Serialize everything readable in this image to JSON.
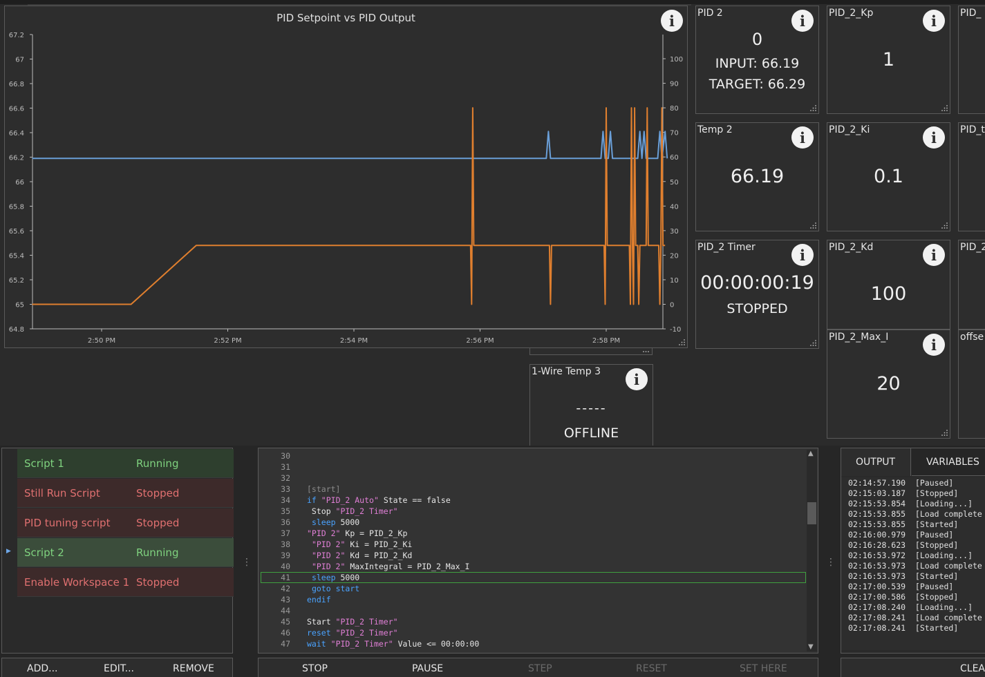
{
  "chart": {
    "title": "PID Setpoint vs PID Output",
    "left_axis_ticks": [
      "67.2",
      "67",
      "66.8",
      "66.6",
      "66.4",
      "66.2",
      "66",
      "65.8",
      "65.6",
      "65.4",
      "65.2",
      "65",
      "64.8"
    ],
    "right_axis_ticks": [
      "100",
      "90",
      "80",
      "70",
      "60",
      "50",
      "40",
      "30",
      "20",
      "10",
      "0",
      "-10"
    ],
    "x_ticks": [
      "2:50 PM",
      "2:52 PM",
      "2:54 PM",
      "2:56 PM",
      "2:58 PM"
    ]
  },
  "chart_data": {
    "type": "line",
    "title": "PID Setpoint vs PID Output",
    "x_ticks": [
      "2:50 PM",
      "2:52 PM",
      "2:54 PM",
      "2:56 PM",
      "2:58 PM"
    ],
    "ylim_left": [
      64.8,
      67.2
    ],
    "ylim_right": [
      -10,
      100
    ],
    "grid": false,
    "series": [
      {
        "axis": "left",
        "color": "#6a9fd8",
        "x": [
          "2:48:54 PM",
          "2:57:03 PM",
          "2:57:05 PM",
          "2:57:07 PM",
          "2:57:55 PM",
          "2:57:57 PM",
          "2:57:59 PM",
          "2:58:02 PM",
          "2:58:04 PM",
          "2:58:06 PM",
          "2:58:30 PM",
          "2:58:32 PM",
          "2:58:34 PM",
          "2:58:36 PM",
          "2:58:38 PM",
          "2:58:40 PM",
          "2:58:49 PM",
          "2:58:51 PM",
          "2:58:53 PM",
          "2:58:56 PM",
          "2:58:58 PM"
        ],
        "values": [
          66.19,
          66.19,
          66.41,
          66.19,
          66.19,
          66.41,
          66.19,
          66.19,
          66.41,
          66.19,
          66.19,
          66.41,
          66.19,
          66.41,
          66.19,
          66.19,
          66.19,
          66.41,
          66.19,
          66.41,
          66.19
        ]
      },
      {
        "axis": "right",
        "color": "#e07f2e",
        "x": [
          "2:48:54 PM",
          "2:50:28 PM",
          "2:51:30 PM",
          "2:55:51 PM",
          "2:55:52 PM",
          "2:55:53 PM",
          "2:55:54 PM",
          "2:57:06 PM",
          "2:57:07 PM",
          "2:57:08 PM",
          "2:57:58 PM",
          "2:57:59 PM",
          "2:58:00 PM",
          "2:58:01 PM",
          "2:58:22 PM",
          "2:58:23 PM",
          "2:58:24 PM",
          "2:58:25 PM",
          "2:58:26 PM",
          "2:58:27 PM",
          "2:58:28 PM",
          "2:58:30 PM",
          "2:58:31 PM",
          "2:58:32 PM",
          "2:58:33 PM",
          "2:58:38 PM",
          "2:58:39 PM",
          "2:58:40 PM",
          "2:58:41 PM",
          "2:58:50 PM",
          "2:58:51 PM",
          "2:58:52 PM",
          "2:58:53 PM",
          "2:58:54 PM",
          "2:58:56 PM"
        ],
        "values": [
          0,
          0,
          24,
          24,
          0,
          80,
          24,
          24,
          0,
          24,
          24,
          0,
          80,
          24,
          24,
          0,
          80,
          24,
          0,
          80,
          24,
          24,
          0,
          24,
          24,
          24,
          80,
          24,
          24,
          24,
          0,
          24,
          80,
          24,
          24
        ]
      }
    ]
  },
  "tiles": {
    "pid2": {
      "title": "PID 2",
      "value": "0",
      "input": "INPUT: 66.19",
      "target": "TARGET: 66.29"
    },
    "pid2_kp": {
      "title": "PID_2_Kp",
      "value": "1"
    },
    "col3_a": {
      "title": "PID_"
    },
    "temp2": {
      "title": "Temp 2",
      "value": "66.19"
    },
    "pid2_ki": {
      "title": "PID_2_Ki",
      "value": "0.1"
    },
    "col3_b": {
      "title": "PID_t"
    },
    "pid2_timer": {
      "title": "PID_2 Timer",
      "value": "00:00:00:19",
      "state": "STOPPED"
    },
    "pid2_kd": {
      "title": "PID_2_Kd",
      "value": "100"
    },
    "col3_c": {
      "title": "PID_2"
    },
    "pid2_maxi": {
      "title": "PID_2_Max_I",
      "value": "20"
    },
    "col3_d": {
      "title": "offse"
    },
    "wire3": {
      "title": "1-Wire Temp 3",
      "value": "-----",
      "state": "OFFLINE"
    }
  },
  "scripts": [
    {
      "name": "Script 1",
      "status": "Running",
      "state": "run"
    },
    {
      "name": "Still Run Script",
      "status": "Stopped",
      "state": "stop"
    },
    {
      "name": "PID tuning script",
      "status": "Stopped",
      "state": "stop"
    },
    {
      "name": "Script 2",
      "status": "Running",
      "state": "run"
    },
    {
      "name": "Enable Workspace 1",
      "status": "Stopped",
      "state": "stop"
    }
  ],
  "script_buttons": {
    "add": "ADD...",
    "edit": "EDIT...",
    "remove": "REMOVE"
  },
  "code_lines": [
    {
      "n": "30",
      "t": ""
    },
    {
      "n": "31",
      "t": ""
    },
    {
      "n": "32",
      "t": ""
    },
    {
      "n": "33",
      "t": "[start]"
    },
    {
      "n": "34",
      "t": "if \"PID_2 Auto\" State == false"
    },
    {
      "n": "35",
      "t": " Stop \"PID_2 Timer\""
    },
    {
      "n": "36",
      "t": " sleep 5000"
    },
    {
      "n": "37",
      "t": "\"PID 2\" Kp = PID_2_Kp"
    },
    {
      "n": "38",
      "t": " \"PID 2\" Ki = PID_2_Ki"
    },
    {
      "n": "39",
      "t": " \"PID 2\" Kd = PID_2_Kd"
    },
    {
      "n": "40",
      "t": " \"PID 2\" MaxIntegral = PID_2_Max_I"
    },
    {
      "n": "41",
      "t": " sleep 5000"
    },
    {
      "n": "42",
      "t": " goto start"
    },
    {
      "n": "43",
      "t": "endif"
    },
    {
      "n": "44",
      "t": ""
    },
    {
      "n": "45",
      "t": "Start \"PID_2 Timer\""
    },
    {
      "n": "46",
      "t": "reset \"PID_2 Timer\""
    },
    {
      "n": "47",
      "t": "wait \"PID_2 Timer\" Value <= 00:00:00"
    }
  ],
  "editor_buttons": {
    "stop": "STOP",
    "pause": "PAUSE",
    "step": "STEP",
    "reset": "RESET",
    "set_here": "SET HERE"
  },
  "output": {
    "tab_output": "OUTPUT",
    "tab_variables": "VARIABLES",
    "clear": "CLEA",
    "log": [
      "02:14:57.190  [Paused]",
      "02:15:03.187  [Stopped]",
      "02:15:53.854  [Loading...]",
      "02:15:53.855  [Load complete",
      "02:15:53.855  [Started]",
      "02:16:00.979  [Paused]",
      "02:16:28.623  [Stopped]",
      "02:16:53.972  [Loading...]",
      "02:16:53.973  [Load complete",
      "02:16:53.973  [Started]",
      "02:17:00.539  [Paused]",
      "02:17:00.586  [Stopped]",
      "02:17:08.240  [Loading...]",
      "02:17:08.241  [Load complete",
      "02:17:08.241  [Started]"
    ]
  },
  "icons": {
    "info": "info-icon",
    "resize": "resize-grip-icon",
    "splitter": "splitter-grip-icon",
    "current_row": "row-pointer-icon"
  }
}
